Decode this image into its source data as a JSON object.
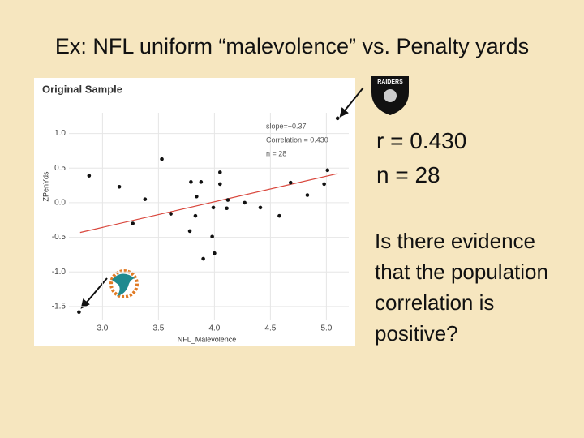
{
  "title": "Ex: NFL uniform “malevolence” vs. Penalty yards",
  "stats": [
    "r = 0.430",
    "n = 28"
  ],
  "question": "Is there evidence that the population correlation is positive?",
  "logo_text": "RAIDERS",
  "chart_data": {
    "type": "scatter",
    "title": "Original Sample",
    "x_label": "NFL_Malevolence",
    "y_label": "ZPenYds",
    "annotations": [
      "slope=+0.37",
      "Correlation = 0.430",
      "n = 28"
    ],
    "color": "#111111",
    "grid": true,
    "x": [
      5.1,
      2.88,
      3.15,
      3.53,
      3.38,
      3.27,
      3.61,
      2.79,
      3.79,
      3.88,
      3.84,
      3.83,
      3.78,
      3.98,
      3.9,
      4.0,
      4.05,
      4.05,
      4.12,
      4.11,
      4.27,
      4.41,
      4.58,
      4.68,
      4.83,
      5.01,
      4.98,
      3.99
    ],
    "values": [
      1.22,
      0.39,
      0.23,
      0.63,
      0.05,
      -0.3,
      -0.16,
      -1.58,
      0.3,
      0.3,
      0.09,
      -0.19,
      -0.41,
      -0.49,
      -0.81,
      -0.73,
      0.44,
      0.27,
      0.04,
      -0.08,
      0.0,
      -0.07,
      -0.19,
      0.29,
      0.11,
      0.47,
      0.27,
      -0.07
    ],
    "trendline": {
      "color": "#d9463c",
      "x": [
        2.8,
        5.1
      ],
      "y": [
        -0.43,
        0.42
      ]
    },
    "xlim": [
      2.7,
      5.2
    ],
    "xticks": [
      {
        "value": 3,
        "label": "3.0"
      },
      {
        "value": 3.5,
        "label": "3.5"
      },
      {
        "value": 4,
        "label": "4.0"
      },
      {
        "value": 4.5,
        "label": "4.5"
      },
      {
        "value": 5,
        "label": "5.0"
      }
    ],
    "ylim": [
      -1.7,
      1.3
    ],
    "yticks": [
      {
        "value": 1,
        "label": "1.0"
      },
      {
        "value": 0.5,
        "label": "0.5"
      },
      {
        "value": 0,
        "label": "0.0"
      },
      {
        "value": -0.5,
        "label": "-0.5"
      },
      {
        "value": -1,
        "label": "-1.0"
      },
      {
        "value": -1.5,
        "label": "-1.5"
      }
    ]
  }
}
